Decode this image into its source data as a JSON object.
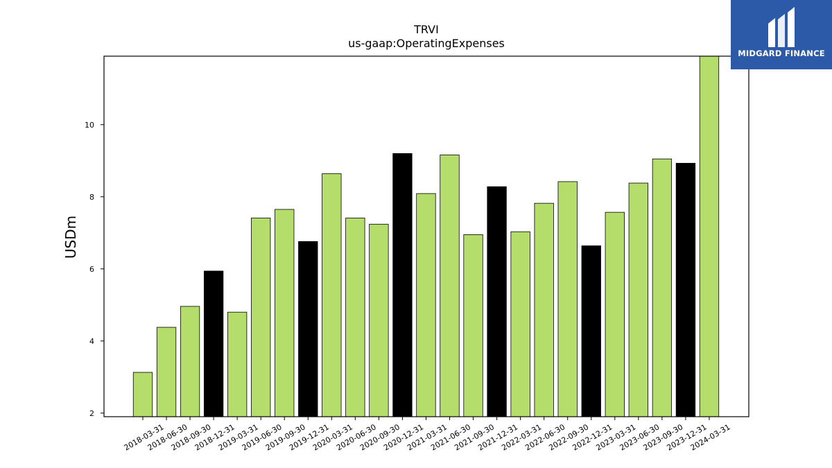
{
  "chart_data": {
    "type": "bar",
    "title": "TRVI",
    "subtitle": "us-gaap:OperatingExpenses",
    "xlabel": "",
    "ylabel": "USDm",
    "ylim": [
      1.9,
      11.9
    ],
    "yticks": [
      2,
      4,
      6,
      8,
      10
    ],
    "categories": [
      "2018-03-31",
      "2018-06-30",
      "2018-09-30",
      "2018-12-31",
      "2019-03-31",
      "2019-06-30",
      "2019-09-30",
      "2019-12-31",
      "2020-03-31",
      "2020-06-30",
      "2020-09-30",
      "2020-12-31",
      "2021-03-31",
      "2021-06-30",
      "2021-09-30",
      "2021-12-31",
      "2022-03-31",
      "2022-06-30",
      "2022-09-30",
      "2022-12-31",
      "2023-03-31",
      "2023-06-30",
      "2023-09-30",
      "2023-12-31",
      "2024-03-31"
    ],
    "values": [
      3.13,
      4.38,
      4.96,
      5.94,
      4.8,
      7.41,
      7.65,
      6.76,
      8.64,
      7.41,
      7.24,
      9.2,
      8.09,
      9.16,
      6.95,
      8.28,
      7.03,
      7.82,
      8.42,
      6.64,
      7.57,
      8.38,
      9.05,
      8.93,
      11.9
    ],
    "year_end_quarters": [
      "2018-12-31",
      "2019-12-31",
      "2020-12-31",
      "2021-12-31",
      "2022-12-31",
      "2023-12-31"
    ],
    "colors": {
      "quarter": "#b4dd6c",
      "year_end": "#000000",
      "edge": "#000000"
    },
    "grid": false,
    "legend": "none"
  },
  "logo": {
    "text": "MIDGARD FINANCE",
    "background": "#2c5aa8"
  }
}
